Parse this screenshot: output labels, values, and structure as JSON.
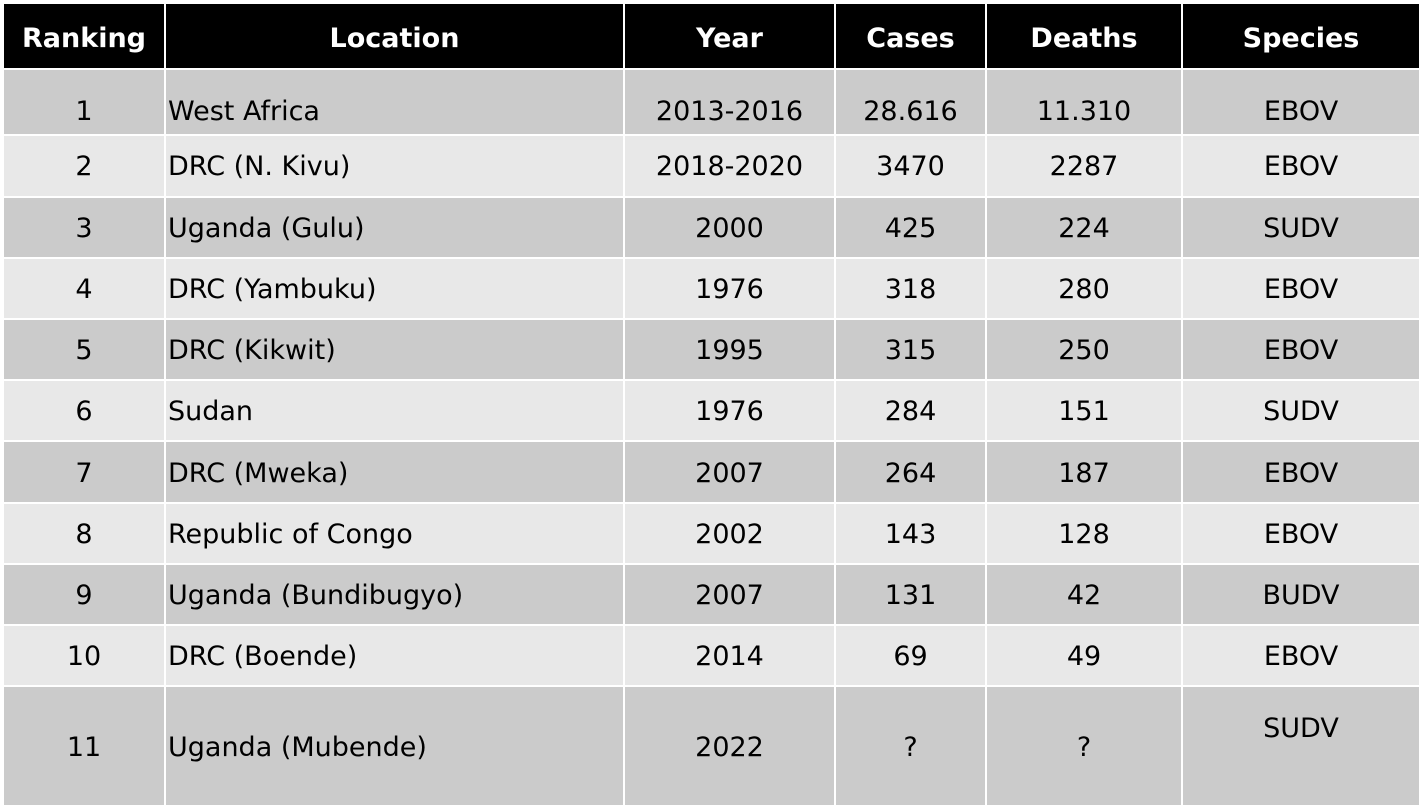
{
  "table": {
    "headers": [
      "Ranking",
      "Location",
      "Year",
      "Cases",
      "Deaths",
      "Species"
    ],
    "rows": [
      [
        "1",
        "West Africa",
        "2013-2016",
        "28.616",
        "11.310",
        "EBOV"
      ],
      [
        "2",
        "DRC (N. Kivu)",
        "2018-2020",
        "3470",
        "2287",
        "EBOV"
      ],
      [
        "3",
        "Uganda (Gulu)",
        "2000",
        "425",
        "224",
        "SUDV"
      ],
      [
        "4",
        "DRC (Yambuku)",
        "1976",
        "318",
        "280",
        "EBOV"
      ],
      [
        "5",
        "DRC (Kikwit)",
        "1995",
        "315",
        "250",
        "EBOV"
      ],
      [
        "6",
        "Sudan",
        "1976",
        "284",
        "151",
        "SUDV"
      ],
      [
        "7",
        "DRC (Mweka)",
        "2007",
        "264",
        "187",
        "EBOV"
      ],
      [
        "8",
        "Republic of Congo",
        "2002",
        "143",
        "128",
        "EBOV"
      ],
      [
        "9",
        "Uganda (Bundibugyo)",
        "2007",
        "131",
        "42",
        "BUDV"
      ],
      [
        "10",
        "DRC (Boende)",
        "2014",
        "69",
        "49",
        "EBOV"
      ],
      [
        "11",
        "Uganda (Mubende)",
        "2022",
        "?",
        "?",
        "SUDV"
      ]
    ]
  },
  "colors": {
    "header_bg": "#000000",
    "header_text": "#ffffff",
    "row_dark": "#cbcbcb",
    "row_light": "#e8e8e8"
  }
}
